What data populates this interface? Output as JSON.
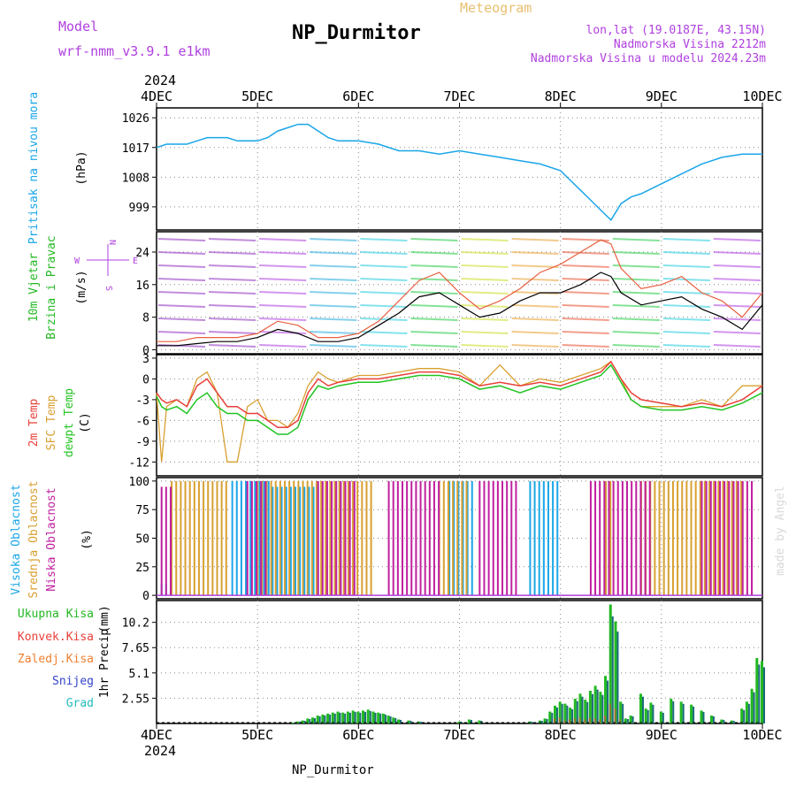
{
  "header": {
    "model_label": "Model",
    "model_name": "wrf-nmm_v3.9.1 e1km",
    "title": "NP_Durmitor",
    "subtitle": "Meteogram",
    "lonlat": "lon,lat (19.0187E, 43.15N)",
    "elevation": "Nadmorska Visina 2212m",
    "model_elevation": "Nadmorska Visina u modelu 2024.23m",
    "credit": "made by Angel",
    "footer": "NP_Durmitor"
  },
  "time_axis": {
    "year": "2024",
    "ticks": [
      "4DEC",
      "5DEC",
      "6DEC",
      "7DEC",
      "8DEC",
      "9DEC",
      "10DEC"
    ]
  },
  "colors": {
    "pressure": "#1aa6e8",
    "temp2m": "#e8403a",
    "sfc_temp": "#d8a030",
    "dewpoint": "#22c422",
    "high_cloud": "#1aa6e8",
    "mid_cloud": "#d8a030",
    "low_cloud": "#c020a0",
    "total_precip": "#22b822",
    "conv_precip": "#e8403a",
    "frozen_precip": "#f08030",
    "snow": "#3344cc",
    "hail": "#22bbbb",
    "wind_label": "#22b822",
    "wind_dir_label": "#b040e0"
  },
  "chart_data": [
    {
      "type": "line",
      "name": "pressure",
      "ylabel": "Pritisak na nivou mora",
      "unit": "(hPa)",
      "ylim": [
        992,
        1029
      ],
      "yticks": [
        999,
        1008,
        1017,
        1026
      ],
      "x": [
        0,
        0.1,
        0.2,
        0.3,
        0.4,
        0.5,
        0.6,
        0.7,
        0.8,
        0.9,
        1.0,
        1.1,
        1.2,
        1.3,
        1.4,
        1.5,
        1.6,
        1.7,
        1.8,
        1.9,
        2.0,
        2.2,
        2.4,
        2.6,
        2.8,
        3.0,
        3.2,
        3.4,
        3.6,
        3.8,
        4.0,
        4.1,
        4.2,
        4.3,
        4.4,
        4.5,
        4.6,
        4.7,
        4.8,
        5.0,
        5.2,
        5.4,
        5.6,
        5.8,
        6.0
      ],
      "series": [
        {
          "values": [
            1017,
            1018,
            1018,
            1018,
            1019,
            1020,
            1020,
            1020,
            1019,
            1019,
            1019,
            1020,
            1022,
            1023,
            1024,
            1024,
            1022,
            1020,
            1019,
            1019,
            1019,
            1018,
            1016,
            1016,
            1015,
            1016,
            1015,
            1014,
            1013,
            1012,
            1010,
            1007,
            1004,
            1001,
            998,
            995,
            1000,
            1002,
            1003,
            1006,
            1009,
            1012,
            1014,
            1015,
            1015
          ]
        }
      ]
    },
    {
      "type": "line",
      "name": "wind",
      "ylabel": "10m Vjetar",
      "ylabel2": "Brzina i Pravac",
      "unit": "(m/s)",
      "dir_legend": [
        "N",
        "E",
        "S",
        "W"
      ],
      "ylim": [
        -1,
        29
      ],
      "yticks": [
        0,
        8,
        16,
        24
      ],
      "x": [
        0,
        0.2,
        0.4,
        0.6,
        0.8,
        1.0,
        1.2,
        1.4,
        1.6,
        1.8,
        2.0,
        2.2,
        2.4,
        2.6,
        2.8,
        3.0,
        3.2,
        3.4,
        3.6,
        3.8,
        4.0,
        4.2,
        4.4,
        4.5,
        4.6,
        4.8,
        5.0,
        5.2,
        5.4,
        5.6,
        5.8,
        6.0
      ],
      "series": [
        {
          "name": "speed",
          "values": [
            1,
            1,
            1.5,
            2,
            2,
            3,
            5,
            4,
            2,
            2,
            3,
            6,
            9,
            13,
            14,
            11,
            8,
            9,
            12,
            14,
            14,
            16,
            19,
            18,
            14,
            11,
            12,
            13,
            10,
            8,
            5,
            11
          ]
        },
        {
          "name": "gust",
          "values": [
            2,
            2,
            3,
            3,
            3,
            4,
            7,
            6,
            3,
            3,
            4,
            7,
            12,
            17,
            19,
            14,
            10,
            12,
            15,
            19,
            21,
            24,
            27,
            26,
            20,
            15,
            16,
            18,
            14,
            12,
            8,
            14
          ]
        }
      ]
    },
    {
      "type": "line",
      "name": "temperature",
      "ylabel": "2m Temp",
      "ylabel2": "SFC Temp",
      "ylabel3": "dewpt Temp",
      "unit": "(C)",
      "ylim": [
        -14,
        3.5
      ],
      "yticks": [
        -12,
        -9,
        -6,
        -3,
        0,
        3
      ],
      "x": [
        0,
        0.05,
        0.1,
        0.2,
        0.3,
        0.4,
        0.5,
        0.6,
        0.7,
        0.8,
        0.9,
        1.0,
        1.1,
        1.2,
        1.3,
        1.4,
        1.5,
        1.6,
        1.7,
        1.8,
        2.0,
        2.2,
        2.4,
        2.6,
        2.8,
        3.0,
        3.2,
        3.4,
        3.6,
        3.8,
        4.0,
        4.2,
        4.4,
        4.5,
        4.6,
        4.7,
        4.8,
        5.0,
        5.2,
        5.4,
        5.6,
        5.8,
        6.0
      ],
      "series": [
        {
          "name": "2m",
          "values": [
            -2,
            -3,
            -3.5,
            -3,
            -4,
            -1,
            0,
            -2,
            -4,
            -4,
            -5,
            -5,
            -6,
            -7,
            -7,
            -6,
            -2,
            0,
            -1,
            -0.5,
            0,
            0,
            0.5,
            1,
            1,
            0.5,
            -1,
            -0.5,
            -1,
            -0.5,
            -1,
            0,
            1,
            2.5,
            0,
            -2,
            -3,
            -3.5,
            -4,
            -3.5,
            -4,
            -3,
            -1
          ]
        },
        {
          "name": "sfc",
          "values": [
            -2,
            -12,
            -4,
            -3,
            -4,
            0,
            1,
            -2,
            -12,
            -12,
            -4,
            -3,
            -6,
            -6,
            -7,
            -5,
            -1,
            1,
            0,
            -0.5,
            0.5,
            0.5,
            1,
            1.5,
            1.5,
            1,
            -1,
            2,
            -1,
            0,
            -0.5,
            0.5,
            1.5,
            2.5,
            0,
            -3,
            -4,
            -4,
            -4,
            -3,
            -4,
            -1,
            -1
          ]
        },
        {
          "name": "dewpt",
          "values": [
            -2.5,
            -4,
            -4.5,
            -4,
            -5,
            -3,
            -2,
            -4,
            -5,
            -5,
            -6,
            -6,
            -7,
            -8,
            -8,
            -7,
            -3,
            -1,
            -1.5,
            -1,
            -0.5,
            -0.5,
            0,
            0.5,
            0.5,
            0,
            -1.5,
            -1,
            -2,
            -1,
            -1.5,
            -0.5,
            0.5,
            2,
            -0.5,
            -3,
            -4,
            -4.5,
            -4.5,
            -4,
            -4.5,
            -3.5,
            -2
          ]
        }
      ]
    },
    {
      "type": "bar",
      "name": "clouds",
      "ylabel": "Visoka Oblacnost",
      "ylabel2": "Srednja Oblacnost",
      "ylabel3": "Niska Oblacnost",
      "unit": "(%)",
      "ylim": [
        -3,
        103
      ],
      "yticks": [
        0,
        25,
        50,
        75,
        100
      ],
      "series": [
        {
          "name": "high",
          "segments": [
            [
              0.05,
              0.15,
              10
            ],
            [
              0.75,
              1.15,
              100
            ],
            [
              1.15,
              1.6,
              95
            ],
            [
              2.9,
              3.15,
              100
            ],
            [
              3.7,
              4.0,
              100
            ]
          ]
        },
        {
          "name": "mid",
          "segments": [
            [
              0.15,
              0.7,
              100
            ],
            [
              1.0,
              2.15,
              100
            ],
            [
              2.8,
              3.1,
              100
            ],
            [
              4.45,
              4.5,
              100
            ],
            [
              4.8,
              5.8,
              100
            ]
          ]
        },
        {
          "name": "low",
          "segments": [
            [
              0.05,
              0.15,
              95
            ],
            [
              0.9,
              1.1,
              100
            ],
            [
              1.6,
              2.0,
              100
            ],
            [
              2.3,
              2.8,
              100
            ],
            [
              3.2,
              3.6,
              100
            ],
            [
              4.3,
              4.9,
              100
            ],
            [
              5.4,
              5.9,
              100
            ]
          ]
        }
      ]
    },
    {
      "type": "bar",
      "name": "precipitation",
      "ylabel": "1hr Precip",
      "unit": "(mm)",
      "legend": [
        "Ukupna Kisa",
        "Konvek.Kisa",
        "Zaledj.Kisa",
        "Snijeg",
        "Grad"
      ],
      "ylim": [
        0,
        12.4
      ],
      "yticks": [
        2.55,
        5.1,
        7.65,
        10.2
      ],
      "x": [
        1.35,
        1.4,
        1.45,
        1.5,
        1.55,
        1.6,
        1.65,
        1.7,
        1.75,
        1.8,
        1.85,
        1.9,
        1.95,
        2.0,
        2.05,
        2.1,
        2.15,
        2.2,
        2.25,
        2.3,
        2.35,
        2.4,
        2.5,
        2.6,
        3.0,
        3.1,
        3.2,
        3.7,
        3.8,
        3.85,
        3.9,
        3.95,
        4.0,
        4.05,
        4.1,
        4.15,
        4.2,
        4.25,
        4.3,
        4.35,
        4.4,
        4.45,
        4.5,
        4.55,
        4.6,
        4.65,
        4.7,
        4.8,
        4.85,
        4.9,
        5.0,
        5.1,
        5.2,
        5.3,
        5.4,
        5.5,
        5.6,
        5.7,
        5.8,
        5.85,
        5.9,
        5.95,
        6.0
      ],
      "series": [
        {
          "name": "total",
          "values": [
            0.1,
            0.2,
            0.3,
            0.5,
            0.6,
            0.8,
            0.9,
            1.0,
            1.1,
            1.2,
            1.1,
            1.2,
            1.3,
            1.2,
            1.3,
            1.4,
            1.2,
            1.1,
            1.0,
            0.8,
            0.6,
            0.4,
            0.3,
            0.2,
            0.2,
            0.4,
            0.3,
            0.2,
            0.3,
            0.5,
            1.2,
            1.8,
            2.2,
            2.0,
            1.6,
            2.5,
            3.0,
            2.4,
            3.3,
            3.8,
            3.2,
            4.8,
            12.0,
            10.3,
            2.2,
            0.5,
            0.8,
            3.0,
            1.5,
            2.1,
            1.2,
            2.5,
            2.2,
            1.9,
            1.3,
            0.8,
            0.4,
            0.3,
            1.5,
            2.2,
            3.5,
            6.6,
            6.3
          ]
        },
        {
          "name": "conv",
          "values": [
            0,
            0,
            0,
            0,
            0,
            0,
            0,
            0,
            0,
            0,
            0,
            0,
            0,
            0,
            0,
            0,
            0,
            0,
            0,
            0,
            0,
            0,
            0,
            0,
            0,
            0,
            0,
            0,
            0,
            0,
            0,
            0.5,
            0.6,
            0.3,
            0.4,
            0.5,
            0.6,
            0.4,
            0.6,
            0.5,
            0.4,
            0.8,
            2.0,
            1.5,
            0.4,
            0,
            0,
            0,
            0,
            0,
            0,
            0,
            0,
            0,
            0,
            0,
            0,
            0,
            0,
            0,
            0,
            0,
            0
          ]
        },
        {
          "name": "snow",
          "values": [
            0.1,
            0.2,
            0.3,
            0.5,
            0.6,
            0.8,
            0.9,
            1.0,
            1.1,
            1.2,
            1.1,
            1.2,
            1.3,
            1.2,
            1.3,
            1.4,
            1.2,
            1.1,
            1.0,
            0.8,
            0.6,
            0.4,
            0.3,
            0.2,
            0.2,
            0.4,
            0.3,
            0.2,
            0.3,
            0.5,
            1.2,
            1.8,
            2.2,
            2.0,
            1.6,
            2.5,
            3.0,
            2.4,
            3.3,
            3.8,
            3.2,
            4.8,
            12.0,
            10.3,
            2.2,
            0.5,
            0.8,
            3.0,
            1.5,
            2.1,
            1.2,
            2.5,
            2.2,
            1.9,
            1.3,
            0.8,
            0.4,
            0.3,
            1.5,
            2.2,
            3.5,
            6.6,
            6.3
          ]
        }
      ]
    }
  ]
}
